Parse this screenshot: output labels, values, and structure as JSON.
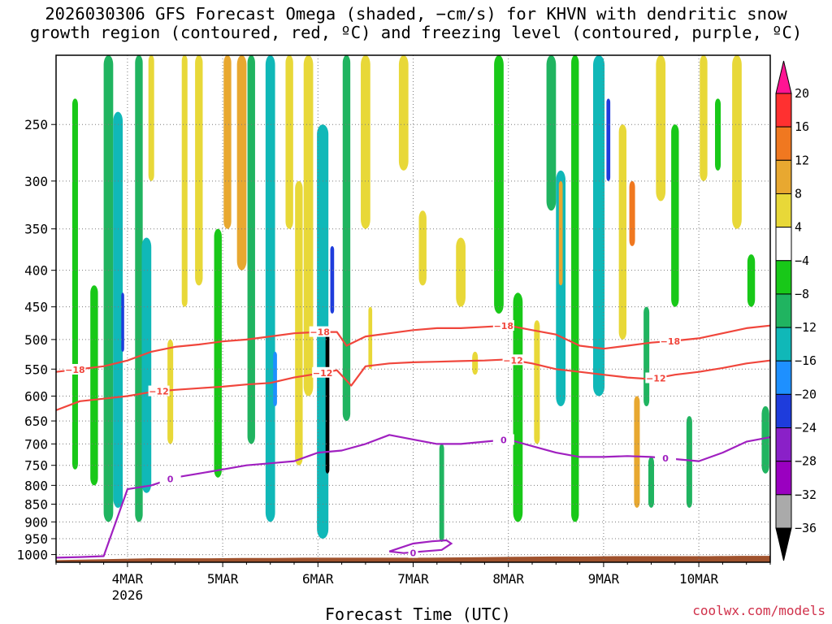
{
  "page": {
    "title_line1": "2026030306 GFS Forecast Omega (shaded, −cm/s) for KHVN with dendritic snow",
    "title_line2": "growth region (contoured, red, ºC) and freezing level (contoured, purple, ºC)",
    "credit": "coolwx.com/models",
    "xlabel": "Forecast Time (UTC)"
  },
  "colors": {
    "dgz": "#f0463c",
    "freezing": "#a020c0",
    "terrain": "#a0522d",
    "grid": "#7a7a7a"
  },
  "chart_data": {
    "type": "heatmap",
    "title": "2026030306 GFS Forecast Omega (shaded, −cm/s) for KHVN with dendritic snow growth region (contoured, red, ºC) and freezing level (contoured, purple, ºC)",
    "xlabel": "Forecast Time (UTC)",
    "ylabel": "",
    "x_range_days": [
      3.25,
      10.75
    ],
    "x_tick_values": [
      4,
      5,
      6,
      7,
      8,
      9,
      10
    ],
    "x_tick_labels": [
      "4MAR",
      "5MAR",
      "6MAR",
      "7MAR",
      "8MAR",
      "9MAR",
      "10MAR"
    ],
    "x_sublabel": "2026",
    "y_axis": "pressure (hPa), log scale, inverted",
    "y_range": [
      1025,
      200
    ],
    "y_ticks": [
      250,
      300,
      350,
      400,
      450,
      500,
      550,
      600,
      650,
      700,
      750,
      800,
      850,
      900,
      950,
      1000
    ],
    "colorbar": {
      "labels": [
        "20",
        "16",
        "12",
        "8",
        "4",
        "−4",
        "−8",
        "−12",
        "−16",
        "−20",
        "−24",
        "−28",
        "−32",
        "−36"
      ],
      "bounds": [
        24,
        20,
        16,
        12,
        8,
        4,
        -4,
        -8,
        -12,
        -16,
        -20,
        -24,
        -28,
        -32,
        -36,
        -40
      ],
      "colors": [
        "#ff1493",
        "#ff3030",
        "#f07820",
        "#e8a830",
        "#e8d838",
        "#ffffff",
        "#18c818",
        "#20b460",
        "#10b8b8",
        "#1e90ff",
        "#1e3cdc",
        "#8a20c8",
        "#9a00c0",
        "#aaaaaa",
        "#000000"
      ]
    },
    "omega_features": [
      {
        "day": 3.45,
        "p_top": 230,
        "p_bot": 760,
        "halfwidth": 0.03,
        "value": -6
      },
      {
        "day": 3.65,
        "p_top": 420,
        "p_bot": 800,
        "halfwidth": 0.04,
        "value": -6
      },
      {
        "day": 3.8,
        "p_top": 200,
        "p_bot": 900,
        "halfwidth": 0.05,
        "value": -8
      },
      {
        "day": 3.9,
        "p_top": 240,
        "p_bot": 860,
        "halfwidth": 0.05,
        "value": -14
      },
      {
        "day": 3.95,
        "p_top": 430,
        "p_bot": 520,
        "halfwidth": 0.015,
        "value": -22
      },
      {
        "day": 4.12,
        "p_top": 200,
        "p_bot": 900,
        "halfwidth": 0.04,
        "value": -10
      },
      {
        "day": 4.2,
        "p_top": 360,
        "p_bot": 820,
        "halfwidth": 0.05,
        "value": -14
      },
      {
        "day": 4.25,
        "p_top": 200,
        "p_bot": 300,
        "halfwidth": 0.03,
        "value": 6
      },
      {
        "day": 4.45,
        "p_top": 500,
        "p_bot": 700,
        "halfwidth": 0.03,
        "value": 8
      },
      {
        "day": 4.6,
        "p_top": 200,
        "p_bot": 450,
        "halfwidth": 0.03,
        "value": 6
      },
      {
        "day": 4.75,
        "p_top": 200,
        "p_bot": 420,
        "halfwidth": 0.04,
        "value": 6
      },
      {
        "day": 4.95,
        "p_top": 350,
        "p_bot": 780,
        "halfwidth": 0.04,
        "value": -6
      },
      {
        "day": 5.05,
        "p_top": 200,
        "p_bot": 350,
        "halfwidth": 0.04,
        "value": 10
      },
      {
        "day": 5.2,
        "p_top": 200,
        "p_bot": 400,
        "halfwidth": 0.05,
        "value": 12
      },
      {
        "day": 5.3,
        "p_top": 200,
        "p_bot": 700,
        "halfwidth": 0.04,
        "value": -10
      },
      {
        "day": 5.5,
        "p_top": 200,
        "p_bot": 900,
        "halfwidth": 0.05,
        "value": -12
      },
      {
        "day": 5.55,
        "p_top": 520,
        "p_bot": 620,
        "halfwidth": 0.02,
        "value": -18
      },
      {
        "day": 5.7,
        "p_top": 200,
        "p_bot": 350,
        "halfwidth": 0.04,
        "value": 8
      },
      {
        "day": 5.8,
        "p_top": 300,
        "p_bot": 750,
        "halfwidth": 0.04,
        "value": 6
      },
      {
        "day": 5.9,
        "p_top": 200,
        "p_bot": 600,
        "halfwidth": 0.05,
        "value": 8
      },
      {
        "day": 6.05,
        "p_top": 250,
        "p_bot": 950,
        "halfwidth": 0.06,
        "value": -14
      },
      {
        "day": 6.1,
        "p_top": 480,
        "p_bot": 770,
        "halfwidth": 0.02,
        "value": -38
      },
      {
        "day": 6.15,
        "p_top": 370,
        "p_bot": 460,
        "halfwidth": 0.02,
        "value": -22
      },
      {
        "day": 6.3,
        "p_top": 200,
        "p_bot": 650,
        "halfwidth": 0.04,
        "value": -8
      },
      {
        "day": 6.5,
        "p_top": 200,
        "p_bot": 350,
        "halfwidth": 0.05,
        "value": 6
      },
      {
        "day": 6.55,
        "p_top": 450,
        "p_bot": 550,
        "halfwidth": 0.02,
        "value": 6
      },
      {
        "day": 6.9,
        "p_top": 200,
        "p_bot": 290,
        "halfwidth": 0.05,
        "value": 6
      },
      {
        "day": 7.1,
        "p_top": 330,
        "p_bot": 420,
        "halfwidth": 0.04,
        "value": 6
      },
      {
        "day": 7.3,
        "p_top": 700,
        "p_bot": 960,
        "halfwidth": 0.025,
        "value": -8
      },
      {
        "day": 7.5,
        "p_top": 360,
        "p_bot": 450,
        "halfwidth": 0.05,
        "value": 6
      },
      {
        "day": 7.65,
        "p_top": 520,
        "p_bot": 560,
        "halfwidth": 0.03,
        "value": 6
      },
      {
        "day": 7.9,
        "p_top": 200,
        "p_bot": 460,
        "halfwidth": 0.05,
        "value": -6
      },
      {
        "day": 8.1,
        "p_top": 430,
        "p_bot": 900,
        "halfwidth": 0.05,
        "value": -6
      },
      {
        "day": 8.3,
        "p_top": 470,
        "p_bot": 700,
        "halfwidth": 0.03,
        "value": 6
      },
      {
        "day": 8.45,
        "p_top": 200,
        "p_bot": 330,
        "halfwidth": 0.05,
        "value": -8
      },
      {
        "day": 8.55,
        "p_top": 290,
        "p_bot": 620,
        "halfwidth": 0.05,
        "value": -12
      },
      {
        "day": 8.55,
        "p_top": 300,
        "p_bot": 420,
        "halfwidth": 0.02,
        "value": 10
      },
      {
        "day": 8.7,
        "p_top": 200,
        "p_bot": 900,
        "halfwidth": 0.04,
        "value": -6
      },
      {
        "day": 8.95,
        "p_top": 200,
        "p_bot": 600,
        "halfwidth": 0.06,
        "value": -12
      },
      {
        "day": 9.05,
        "p_top": 230,
        "p_bot": 300,
        "halfwidth": 0.02,
        "value": -22
      },
      {
        "day": 9.2,
        "p_top": 250,
        "p_bot": 500,
        "halfwidth": 0.04,
        "value": 6
      },
      {
        "day": 9.3,
        "p_top": 300,
        "p_bot": 370,
        "halfwidth": 0.03,
        "value": 14
      },
      {
        "day": 9.35,
        "p_top": 600,
        "p_bot": 860,
        "halfwidth": 0.03,
        "value": 10
      },
      {
        "day": 9.45,
        "p_top": 450,
        "p_bot": 620,
        "halfwidth": 0.03,
        "value": -10
      },
      {
        "day": 9.5,
        "p_top": 730,
        "p_bot": 860,
        "halfwidth": 0.03,
        "value": -8
      },
      {
        "day": 9.6,
        "p_top": 200,
        "p_bot": 320,
        "halfwidth": 0.05,
        "value": 6
      },
      {
        "day": 9.75,
        "p_top": 250,
        "p_bot": 450,
        "halfwidth": 0.04,
        "value": -6
      },
      {
        "day": 9.9,
        "p_top": 640,
        "p_bot": 860,
        "halfwidth": 0.03,
        "value": -10
      },
      {
        "day": 10.05,
        "p_top": 200,
        "p_bot": 300,
        "halfwidth": 0.04,
        "value": 6
      },
      {
        "day": 10.2,
        "p_top": 230,
        "p_bot": 290,
        "halfwidth": 0.03,
        "value": -6
      },
      {
        "day": 10.4,
        "p_top": 200,
        "p_bot": 350,
        "halfwidth": 0.05,
        "value": 6
      },
      {
        "day": 10.55,
        "p_top": 380,
        "p_bot": 450,
        "halfwidth": 0.04,
        "value": -6
      },
      {
        "day": 10.7,
        "p_top": 620,
        "p_bot": 770,
        "halfwidth": 0.04,
        "value": -10
      }
    ],
    "dgz_upper_minus18": {
      "days": [
        3.25,
        3.5,
        3.75,
        4.0,
        4.25,
        4.5,
        4.75,
        5.0,
        5.25,
        5.5,
        5.75,
        6.0,
        6.2,
        6.3,
        6.5,
        6.75,
        7.0,
        7.25,
        7.5,
        7.75,
        8.0,
        8.25,
        8.5,
        8.75,
        9.0,
        9.25,
        9.5,
        9.75,
        10.0,
        10.25,
        10.5,
        10.75
      ],
      "pressure": [
        555,
        550,
        545,
        535,
        520,
        512,
        508,
        503,
        500,
        495,
        490,
        488,
        488,
        510,
        495,
        490,
        485,
        482,
        482,
        480,
        478,
        485,
        492,
        510,
        515,
        510,
        505,
        502,
        498,
        490,
        482,
        478
      ],
      "labels": [
        {
          "day": 3.45,
          "text": "−18"
        },
        {
          "day": 6.02,
          "text": "−18"
        },
        {
          "day": 7.95,
          "text": "−18"
        },
        {
          "day": 9.7,
          "text": "−18"
        }
      ]
    },
    "dgz_lower_minus12": {
      "days": [
        3.25,
        3.5,
        3.75,
        4.0,
        4.25,
        4.5,
        4.75,
        5.0,
        5.25,
        5.5,
        5.75,
        6.0,
        6.2,
        6.35,
        6.5,
        6.75,
        7.0,
        7.25,
        7.5,
        7.75,
        8.0,
        8.25,
        8.5,
        8.75,
        9.0,
        9.25,
        9.5,
        9.75,
        10.0,
        10.25,
        10.5,
        10.75
      ],
      "pressure": [
        628,
        610,
        605,
        600,
        592,
        588,
        585,
        582,
        578,
        575,
        565,
        558,
        552,
        580,
        545,
        540,
        538,
        537,
        536,
        535,
        533,
        540,
        550,
        555,
        560,
        565,
        568,
        560,
        555,
        548,
        540,
        535
      ],
      "labels": [
        {
          "day": 4.33,
          "text": "−12"
        },
        {
          "day": 6.05,
          "text": "−12"
        },
        {
          "day": 8.05,
          "text": "−12"
        },
        {
          "day": 9.55,
          "text": "−12"
        }
      ]
    },
    "freezing_level_0": {
      "days": [
        3.25,
        3.5,
        3.75,
        4.0,
        4.25,
        4.5,
        4.75,
        5.0,
        5.25,
        5.5,
        5.75,
        6.0,
        6.25,
        6.5,
        6.75,
        7.0,
        7.25,
        7.5,
        7.75,
        8.0,
        8.25,
        8.5,
        8.75,
        9.0,
        9.25,
        9.5,
        9.75,
        10.0,
        10.25,
        10.5,
        10.75
      ],
      "pressure": [
        1010,
        1008,
        1005,
        810,
        800,
        780,
        770,
        760,
        750,
        745,
        740,
        720,
        715,
        700,
        680,
        690,
        700,
        700,
        695,
        690,
        705,
        720,
        730,
        730,
        728,
        730,
        735,
        740,
        720,
        695,
        685
      ],
      "cap_note": "line starts near the surface before 4MAR and rises to ~800 hPa at 4MAR",
      "labels": [
        {
          "day": 4.45,
          "text": "0"
        },
        {
          "day": 7.95,
          "text": "0"
        },
        {
          "day": 9.65,
          "text": "0"
        }
      ]
    },
    "freezing_loop_0": {
      "days": [
        6.75,
        7.0,
        7.2,
        7.35,
        7.4,
        7.3,
        7.1,
        6.9,
        6.75
      ],
      "pressure": [
        990,
        965,
        958,
        955,
        965,
        985,
        990,
        995,
        990
      ],
      "label": "0"
    },
    "terrain_surface_hPa": [
      1018,
      1016,
      1014,
      1012,
      1012,
      1012,
      1011,
      1011,
      1010,
      1010,
      1010,
      1010,
      1010,
      1009,
      1008,
      1007,
      1006,
      1006,
      1005,
      1005,
      1005,
      1005,
      1004,
      1004
    ]
  }
}
